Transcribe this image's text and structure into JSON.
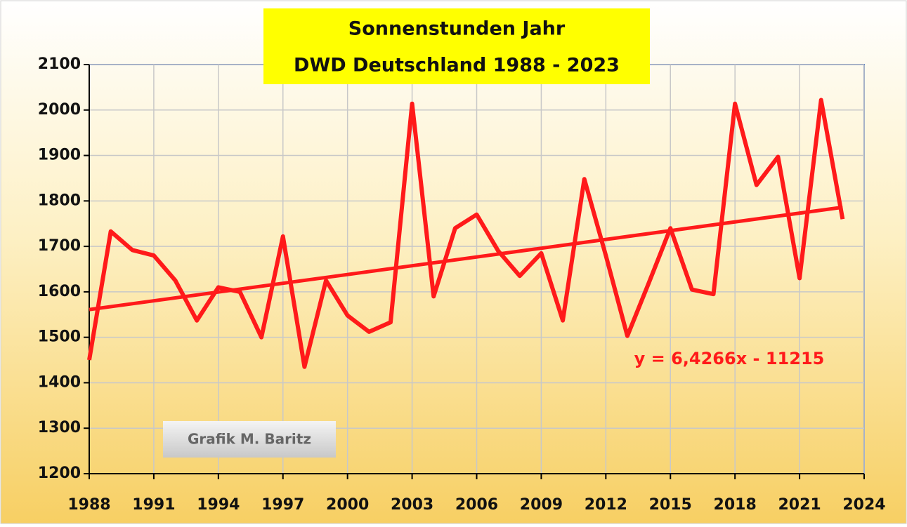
{
  "chart_data": {
    "type": "line",
    "title": "Sonnenstunden Jahr",
    "subtitle": "DWD Deutschland 1988 - 2023",
    "credit": "Grafik  M. Baritz",
    "annotation": "y = 6,4266x - 11215",
    "x": [
      1988,
      1989,
      1990,
      1991,
      1992,
      1993,
      1994,
      1995,
      1996,
      1997,
      1998,
      1999,
      2000,
      2001,
      2002,
      2003,
      2004,
      2005,
      2006,
      2007,
      2008,
      2009,
      2010,
      2011,
      2012,
      2013,
      2014,
      2015,
      2016,
      2017,
      2018,
      2019,
      2020,
      2021,
      2022,
      2023
    ],
    "values": [
      1450,
      1733,
      1692,
      1680,
      1625,
      1537,
      1610,
      1600,
      1500,
      1722,
      1435,
      1625,
      1548,
      1512,
      1533,
      2014,
      1590,
      1740,
      1770,
      1690,
      1635,
      1685,
      1537,
      1848,
      1680,
      1503,
      1620,
      1740,
      1605,
      1595,
      2014,
      1835,
      1897,
      1630,
      2022,
      1760
    ],
    "color": "#ff1a1a",
    "trend": {
      "x": [
        1988,
        2023
      ],
      "values": [
        1561,
        1786
      ]
    },
    "xlim": [
      1988,
      2024
    ],
    "xticks": [
      1988,
      1991,
      1994,
      1997,
      2000,
      2003,
      2006,
      2009,
      2012,
      2015,
      2018,
      2021,
      2024
    ],
    "ylim": [
      1200,
      2100
    ],
    "yticks": [
      1200,
      1300,
      1400,
      1500,
      1600,
      1700,
      1800,
      1900,
      2000,
      2100
    ],
    "grid": true
  }
}
